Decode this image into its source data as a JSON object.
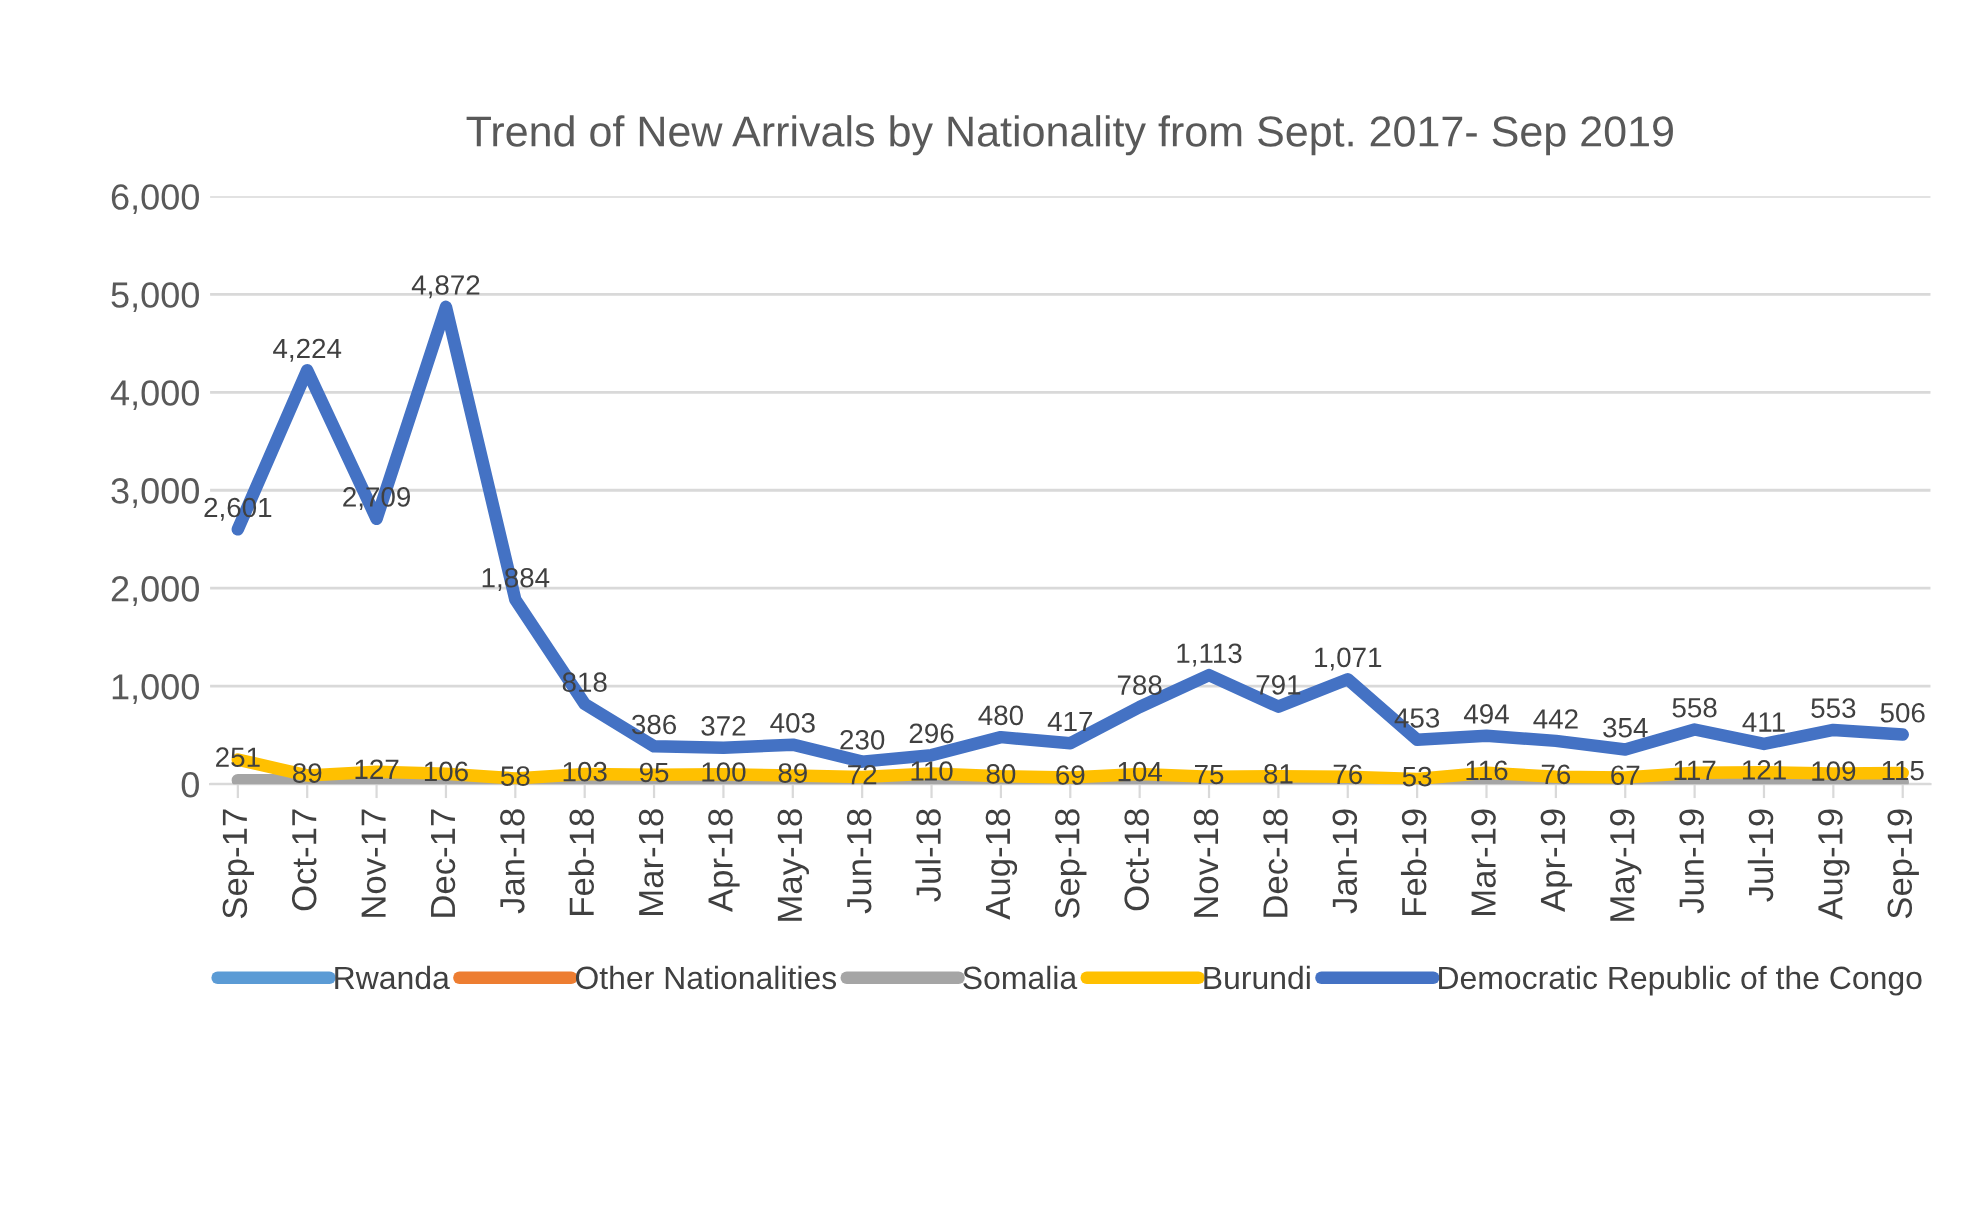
{
  "chart_data": {
    "type": "line",
    "title": "Trend of New Arrivals by Nationality from Sept. 2017- Sep 2019",
    "categories": [
      "Sep-17",
      "Oct-17",
      "Nov-17",
      "Dec-17",
      "Jan-18",
      "Feb-18",
      "Mar-18",
      "Apr-18",
      "May-18",
      "Jun-18",
      "Jul-18",
      "Aug-18",
      "Sep-18",
      "Oct-18",
      "Nov-18",
      "Dec-18",
      "Jan-19",
      "Feb-19",
      "Mar-19",
      "Apr-19",
      "May-19",
      "Jun-19",
      "Jul-19",
      "Aug-19",
      "Sep-19"
    ],
    "series": [
      {
        "name": "Rwanda",
        "color": "#5b9bd5",
        "values": [
          null,
          null,
          null,
          null,
          null,
          null,
          null,
          null,
          null,
          null,
          null,
          null,
          null,
          null,
          null,
          null,
          null,
          null,
          null,
          null,
          null,
          null,
          null,
          null,
          null
        ]
      },
      {
        "name": "Other Nationalities",
        "color": "#ed7d31",
        "values": [
          null,
          null,
          null,
          null,
          null,
          null,
          null,
          null,
          null,
          null,
          null,
          null,
          null,
          null,
          null,
          null,
          null,
          null,
          null,
          null,
          null,
          null,
          null,
          null,
          null
        ]
      },
      {
        "name": "Somalia",
        "color": "#a5a5a5",
        "values": [
          40,
          40,
          30,
          30,
          20,
          20,
          20,
          20,
          20,
          20,
          20,
          20,
          20,
          20,
          20,
          20,
          20,
          20,
          20,
          20,
          20,
          20,
          20,
          20,
          20
        ]
      },
      {
        "name": "Burundi",
        "color": "#ffc000",
        "values": [
          251,
          89,
          127,
          106,
          58,
          103,
          95,
          100,
          89,
          72,
          110,
          80,
          69,
          104,
          75,
          81,
          76,
          53,
          116,
          76,
          67,
          117,
          121,
          109,
          115
        ],
        "value_labels": [
          "251",
          "89",
          "127",
          "106",
          "58",
          "103",
          "95",
          "100",
          "89",
          "72",
          "110",
          "80",
          "69",
          "104",
          "75",
          "81",
          "76",
          "53",
          "116",
          "76",
          "67",
          "117",
          "121",
          "109",
          "115"
        ]
      },
      {
        "name": "Democratic Republic of the Congo",
        "color": "#4472c4",
        "values": [
          2601,
          4224,
          2709,
          4872,
          1884,
          818,
          386,
          372,
          403,
          230,
          296,
          480,
          417,
          788,
          1113,
          791,
          1071,
          453,
          494,
          442,
          354,
          558,
          411,
          553,
          506
        ],
        "value_labels": [
          "2,601",
          "4,224",
          "2,709",
          "4,872",
          "1,884",
          "818",
          "386",
          "372",
          "403",
          "230",
          "296",
          "480",
          "417",
          "788",
          "1,113",
          "791",
          "1,071",
          "453",
          "494",
          "442",
          "354",
          "558",
          "411",
          "553",
          "506"
        ]
      }
    ],
    "ylim": [
      0,
      6000
    ],
    "yticks": [
      {
        "value": 0,
        "label": "0"
      },
      {
        "value": 1000,
        "label": "1,000"
      },
      {
        "value": 2000,
        "label": "2,000"
      },
      {
        "value": 3000,
        "label": "3,000"
      },
      {
        "value": 4000,
        "label": "4,000"
      },
      {
        "value": 5000,
        "label": "5,000"
      },
      {
        "value": 6000,
        "label": "6,000"
      }
    ],
    "grid": "y",
    "legend": "bottom",
    "marker": "none",
    "line_style": "solid"
  }
}
